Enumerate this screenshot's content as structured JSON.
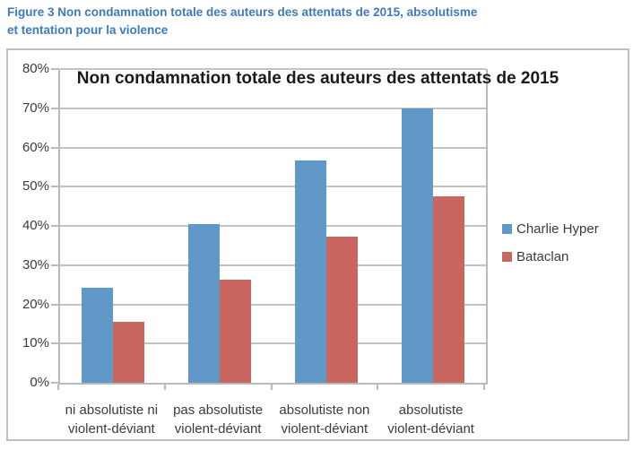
{
  "caption": {
    "line1": "Figure 3 Non condamnation totale des auteurs des attentats de 2015, absolutisme",
    "line2": "et tentation pour la violence"
  },
  "chart_data": {
    "type": "bar",
    "title": "Non condamnation totale des auteurs des attentats de 2015",
    "categories": [
      "ni absolutiste ni\nviolent-déviant",
      "pas absolutiste\nviolent-déviant",
      "absolutiste non\nviolent-déviant",
      "absolutiste\nviolent-déviant"
    ],
    "series": [
      {
        "name": "Charlie Hyper",
        "color": "#6099C8",
        "values": [
          24.3,
          40.5,
          56.6,
          70.0
        ]
      },
      {
        "name": "Bataclan",
        "color": "#C8665F",
        "values": [
          15.5,
          26.3,
          37.2,
          47.6
        ]
      }
    ],
    "ylim": [
      0,
      80
    ],
    "ytick_step": 10,
    "ytick_suffix": "%",
    "grid": true,
    "legend_position": "right"
  },
  "colors": {
    "caption_text": "#3E79C2",
    "gridline": "#C3C3C3",
    "axis_text": "#3B3B3B",
    "frame_border": "#BFBFBF"
  }
}
